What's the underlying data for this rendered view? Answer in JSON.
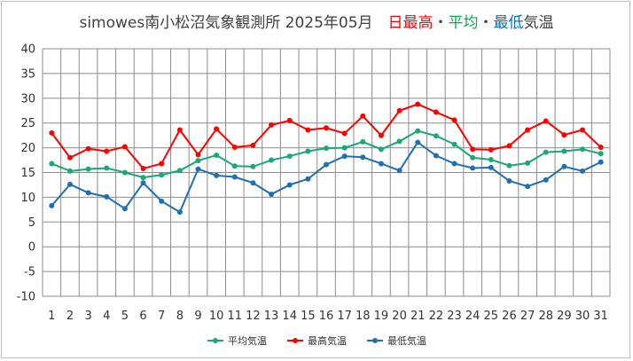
{
  "chart_data": {
    "type": "line",
    "title_segments": [
      {
        "text": "simowes南小松沼気象観測所 2025年05月",
        "color": "#404040"
      },
      {
        "text": "　日最高",
        "color": "#ff0000"
      },
      {
        "text": "・",
        "color": "#404040"
      },
      {
        "text": "平均",
        "color": "#00b050"
      },
      {
        "text": "・",
        "color": "#404040"
      },
      {
        "text": "最低",
        "color": "#0070c0"
      },
      {
        "text": "気温",
        "color": "#404040"
      }
    ],
    "xlabel": "",
    "ylabel": "",
    "x": [
      1,
      2,
      3,
      4,
      5,
      6,
      7,
      8,
      9,
      10,
      11,
      12,
      13,
      14,
      15,
      16,
      17,
      18,
      19,
      20,
      21,
      22,
      23,
      24,
      25,
      26,
      27,
      28,
      29,
      30,
      31
    ],
    "ylim": [
      -10,
      40
    ],
    "yticks": [
      -10,
      -5,
      0,
      5,
      10,
      15,
      20,
      25,
      30,
      35,
      40
    ],
    "grid": true,
    "legend_position": "bottom",
    "series": [
      {
        "name": "平均気温",
        "color": "#1aa874",
        "values": [
          16.8,
          15.3,
          15.7,
          15.9,
          15.0,
          14.0,
          14.5,
          15.4,
          17.4,
          18.5,
          16.3,
          16.2,
          17.5,
          18.3,
          19.3,
          19.9,
          20.0,
          21.2,
          19.7,
          21.3,
          23.4,
          22.4,
          20.7,
          18.0,
          17.6,
          16.4,
          16.9,
          19.1,
          19.3,
          19.7,
          18.8
        ]
      },
      {
        "name": "最高気温",
        "color": "#ff0000",
        "values": [
          23.0,
          18.0,
          19.8,
          19.3,
          20.2,
          15.8,
          16.8,
          23.6,
          18.6,
          23.8,
          20.1,
          20.5,
          24.6,
          25.5,
          23.6,
          24.0,
          22.9,
          26.4,
          22.5,
          27.5,
          28.8,
          27.2,
          25.6,
          19.7,
          19.6,
          20.4,
          23.6,
          25.4,
          22.6,
          23.6,
          20.1
        ]
      },
      {
        "name": "最低気温",
        "color": "#1f6fb2",
        "values": [
          8.3,
          12.6,
          10.9,
          10.1,
          7.7,
          12.9,
          9.2,
          7.0,
          15.7,
          14.4,
          14.1,
          12.9,
          10.6,
          12.5,
          13.7,
          16.6,
          18.3,
          18.1,
          16.8,
          15.4,
          21.1,
          18.4,
          16.8,
          15.9,
          16.0,
          13.3,
          12.2,
          13.5,
          16.2,
          15.3,
          17.1
        ]
      }
    ]
  }
}
